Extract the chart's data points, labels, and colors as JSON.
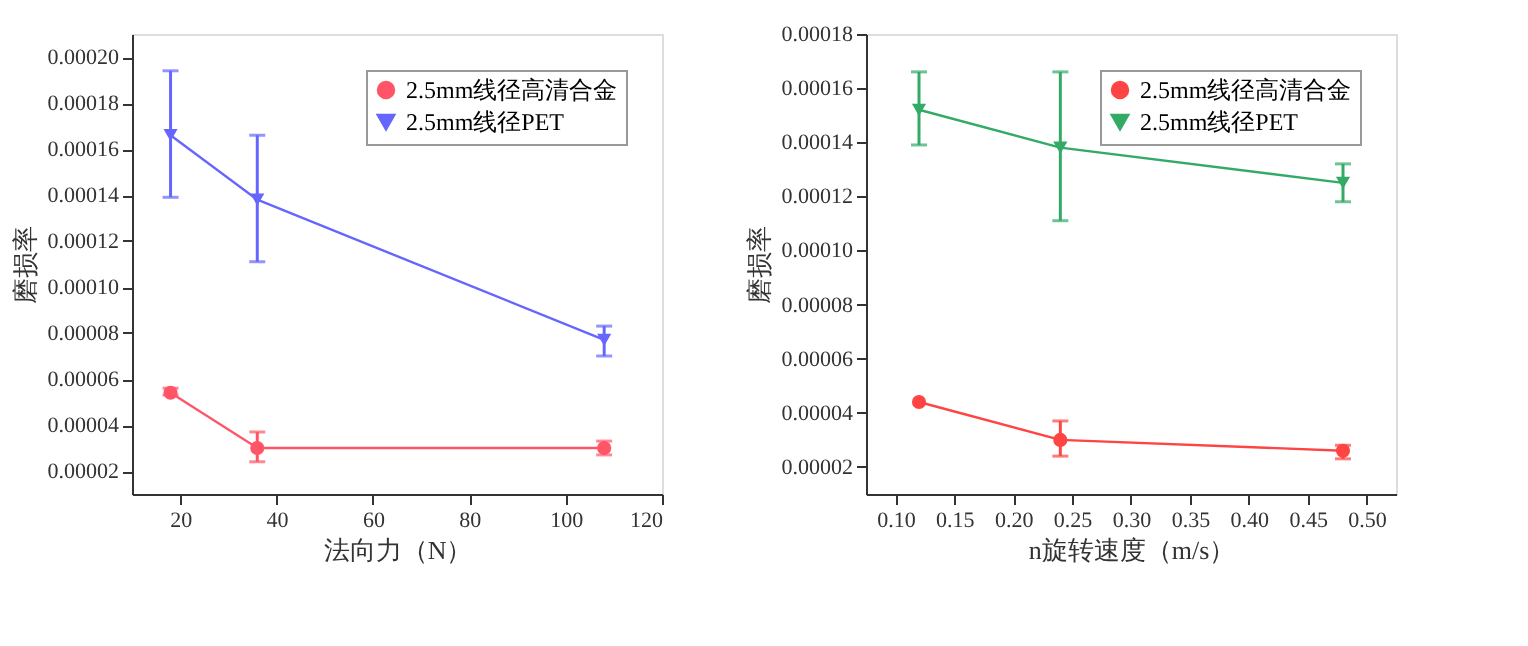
{
  "chart_data": [
    {
      "type": "line",
      "xlabel": "法向力（N）",
      "ylabel": "磨损率",
      "x": [
        18,
        36,
        108
      ],
      "xlim": [
        10,
        120
      ],
      "xticks": [
        20,
        40,
        60,
        80,
        100,
        120
      ],
      "ylim": [
        1e-05,
        0.00021
      ],
      "yticks": [
        {
          "value": 2e-05,
          "label": "0.00002"
        },
        {
          "value": 4e-05,
          "label": "0.00004"
        },
        {
          "value": 6e-05,
          "label": "0.00006"
        },
        {
          "value": 8e-05,
          "label": "0.00008"
        },
        {
          "value": 0.0001,
          "label": "0.00010"
        },
        {
          "value": 0.00012,
          "label": "0.00012"
        },
        {
          "value": 0.00014,
          "label": "0.00014"
        },
        {
          "value": 0.00016,
          "label": "0.00016"
        },
        {
          "value": 0.00018,
          "label": "0.00018"
        },
        {
          "value": 0.0002,
          "label": "0.00020"
        }
      ],
      "grid": false,
      "legend": "top right",
      "line_style": "solid",
      "series": [
        {
          "name": "2.5mm线径高清合金",
          "color": "#ff5566",
          "marker": "circle",
          "values": [
            5.4e-05,
            3e-05,
            3e-05
          ],
          "errors": [
            [
              5.3e-05,
              5.6e-05
            ],
            [
              2.4e-05,
              3.7e-05
            ],
            [
              2.7e-05,
              3.3e-05
            ]
          ]
        },
        {
          "name": "2.5mm线径PET",
          "color": "#6666ff",
          "marker": "triangle",
          "values": [
            0.000166,
            0.000138,
            7.7e-05
          ],
          "errors": [
            [
              0.000139,
              0.000194
            ],
            [
              0.000111,
              0.000166
            ],
            [
              7e-05,
              8.3e-05
            ]
          ]
        }
      ]
    },
    {
      "type": "line",
      "xlabel": "n旋转速度（m/s）",
      "ylabel": "磨损率",
      "x": [
        0.12,
        0.24,
        0.48
      ],
      "xlim": [
        0.075,
        0.525
      ],
      "xticks": [
        {
          "value": 0.1,
          "label": "0.10"
        },
        {
          "value": 0.15,
          "label": "0.15"
        },
        {
          "value": 0.2,
          "label": "0.20"
        },
        {
          "value": 0.25,
          "label": "0.25"
        },
        {
          "value": 0.3,
          "label": "0.30"
        },
        {
          "value": 0.35,
          "label": "0.35"
        },
        {
          "value": 0.4,
          "label": "0.40"
        },
        {
          "value": 0.45,
          "label": "0.45"
        },
        {
          "value": 0.5,
          "label": "0.50"
        }
      ],
      "ylim": [
        1e-05,
        0.00018
      ],
      "yticks": [
        {
          "value": 2e-05,
          "label": "0.00002"
        },
        {
          "value": 4e-05,
          "label": "0.00004"
        },
        {
          "value": 6e-05,
          "label": "0.00006"
        },
        {
          "value": 8e-05,
          "label": "0.00008"
        },
        {
          "value": 0.0001,
          "label": "0.00010"
        },
        {
          "value": 0.00012,
          "label": "0.00012"
        },
        {
          "value": 0.00014,
          "label": "0.00014"
        },
        {
          "value": 0.00016,
          "label": "0.00016"
        },
        {
          "value": 0.00018,
          "label": "0.00018"
        }
      ],
      "grid": false,
      "legend": "top right",
      "line_style": "solid",
      "series": [
        {
          "name": "2.5mm线径高清合金",
          "color": "#ff4444",
          "marker": "circle",
          "values": [
            4.4e-05,
            3e-05,
            2.6e-05
          ],
          "errors": [
            null,
            [
              2.4e-05,
              3.7e-05
            ],
            [
              2.3e-05,
              2.8e-05
            ]
          ]
        },
        {
          "name": "2.5mm线径PET",
          "color": "#33aa66",
          "marker": "triangle",
          "values": [
            0.000152,
            0.000138,
            0.000125
          ],
          "errors": [
            [
              0.000139,
              0.000166
            ],
            [
              0.000111,
              0.000166
            ],
            [
              0.000118,
              0.000132
            ]
          ]
        }
      ]
    }
  ]
}
